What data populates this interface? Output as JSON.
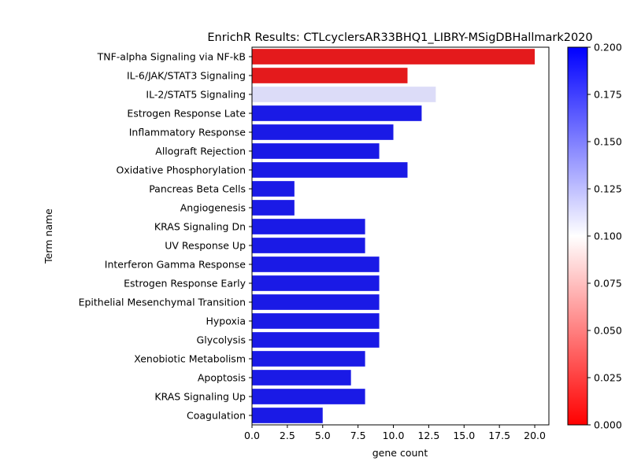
{
  "chart_data": {
    "type": "bar",
    "orientation": "horizontal",
    "title": "EnrichR Results: CTLcyclersAR33BHQ1_LIBRY-MSigDBHallmark2020",
    "xlabel": "gene count",
    "ylabel": "Term name",
    "xlim": [
      0,
      21
    ],
    "xticks": [
      0.0,
      2.5,
      5.0,
      7.5,
      10.0,
      12.5,
      15.0,
      17.5,
      20.0
    ],
    "xtick_labels": [
      "0.0",
      "2.5",
      "5.0",
      "7.5",
      "10.0",
      "12.5",
      "15.0",
      "17.5",
      "20.0"
    ],
    "grid": false,
    "categories": [
      "TNF-alpha Signaling via NF-kB",
      "IL-6/JAK/STAT3 Signaling",
      "IL-2/STAT5 Signaling",
      "Estrogen Response Late",
      "Inflammatory Response",
      "Allograft Rejection",
      "Oxidative Phosphorylation",
      "Pancreas Beta Cells",
      "Angiogenesis",
      "KRAS Signaling Dn",
      "UV Response Up",
      "Interferon Gamma Response",
      "Estrogen Response Early",
      "Epithelial Mesenchymal Transition",
      "Hypoxia",
      "Glycolysis",
      "Xenobiotic Metabolism",
      "Apoptosis",
      "KRAS Signaling Up",
      "Coagulation"
    ],
    "values": [
      20,
      11,
      13,
      12,
      10,
      9,
      11,
      3,
      3,
      8,
      8,
      9,
      9,
      9,
      9,
      9,
      8,
      7,
      8,
      5
    ],
    "bar_colors": [
      "#e41a1c",
      "#e41a1c",
      "#dcdcf8",
      "#1a1ae6",
      "#1a1ae6",
      "#1a1ae6",
      "#1a1ae6",
      "#1a1ae6",
      "#1a1ae6",
      "#1a1ae6",
      "#1a1ae6",
      "#1a1ae6",
      "#1a1ae6",
      "#1a1ae6",
      "#1a1ae6",
      "#1a1ae6",
      "#1a1ae6",
      "#1a1ae6",
      "#1a1ae6",
      "#1a1ae6"
    ],
    "colorbar": {
      "range": [
        0.0,
        0.2
      ],
      "ticks": [
        0.0,
        0.025,
        0.05,
        0.075,
        0.1,
        0.125,
        0.15,
        0.175,
        0.2
      ],
      "tick_labels": [
        "0.000",
        "0.025",
        "0.050",
        "0.075",
        "0.100",
        "0.125",
        "0.150",
        "0.175",
        "0.200"
      ],
      "colormap": [
        "#ff0000",
        "#ffffff",
        "#0000ff"
      ]
    }
  }
}
